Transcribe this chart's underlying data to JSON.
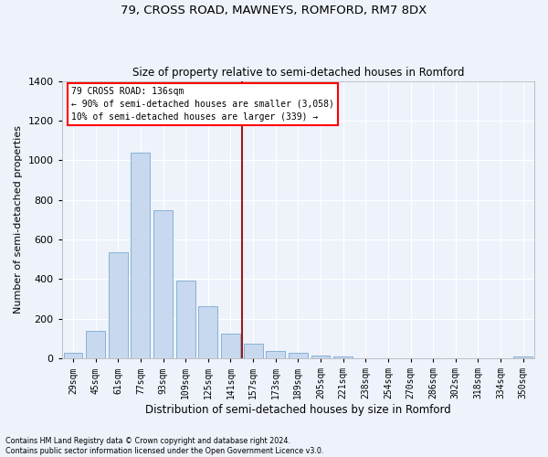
{
  "title1": "79, CROSS ROAD, MAWNEYS, ROMFORD, RM7 8DX",
  "title2": "Size of property relative to semi-detached houses in Romford",
  "xlabel": "Distribution of semi-detached houses by size in Romford",
  "ylabel": "Number of semi-detached properties",
  "categories": [
    "29sqm",
    "45sqm",
    "61sqm",
    "77sqm",
    "93sqm",
    "109sqm",
    "125sqm",
    "141sqm",
    "157sqm",
    "173sqm",
    "189sqm",
    "205sqm",
    "221sqm",
    "238sqm",
    "254sqm",
    "270sqm",
    "286sqm",
    "302sqm",
    "318sqm",
    "334sqm",
    "350sqm"
  ],
  "values": [
    28,
    140,
    535,
    1040,
    750,
    395,
    265,
    125,
    75,
    38,
    28,
    15,
    10,
    0,
    0,
    0,
    0,
    0,
    0,
    0,
    10
  ],
  "bar_color": "#c8d8ee",
  "bar_edge_color": "#7aaad0",
  "vline_x": 7.5,
  "vline_color": "#9b1a1a",
  "annotation_text_line1": "79 CROSS ROAD: 136sqm",
  "annotation_text_line2": "← 90% of semi-detached houses are smaller (3,058)",
  "annotation_text_line3": "10% of semi-detached houses are larger (339) →",
  "footnote1": "Contains HM Land Registry data © Crown copyright and database right 2024.",
  "footnote2": "Contains public sector information licensed under the Open Government Licence v3.0.",
  "ylim": [
    0,
    1400
  ],
  "yticks": [
    0,
    200,
    400,
    600,
    800,
    1000,
    1200,
    1400
  ],
  "bg_color": "#eef2fb",
  "plot_bg_color": "#eef2fb"
}
